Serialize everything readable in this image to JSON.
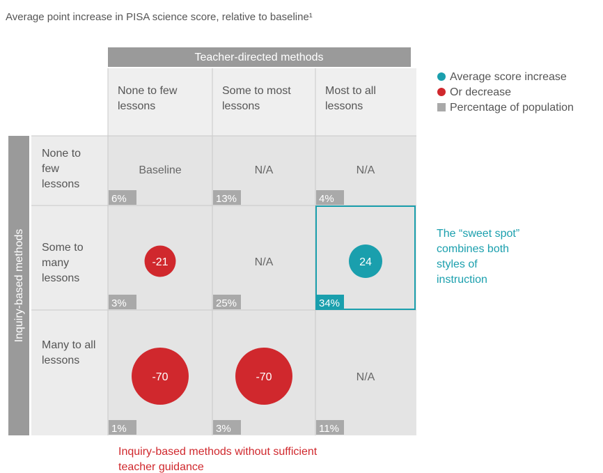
{
  "chart_data": {
    "type": "bubble_matrix",
    "title": "Average point increase in PISA science score, relative to baseline¹",
    "column_header": "Teacher-directed methods",
    "row_header": "Inquiry-based methods",
    "columns": [
      "None to few lessons",
      "Some to most lessons",
      "Most to all lessons"
    ],
    "rows": [
      "None to few lessons",
      "Some to many lessons",
      "Many to all lessons"
    ],
    "values": [
      [
        null,
        null,
        null
      ],
      [
        -21,
        null,
        24
      ],
      [
        -70,
        -70,
        null
      ]
    ],
    "value_labels": [
      [
        "Baseline",
        "N/A",
        "N/A"
      ],
      [
        "-21",
        "N/A",
        "24"
      ],
      [
        "-70",
        "-70",
        "N/A"
      ]
    ],
    "shares": [
      [
        6,
        13,
        4
      ],
      [
        3,
        25,
        34
      ],
      [
        1,
        3,
        11
      ]
    ],
    "share_labels": [
      [
        "6%",
        "13%",
        "4%"
      ],
      [
        "3%",
        "25%",
        "34%"
      ],
      [
        "1%",
        "3%",
        "11%"
      ]
    ],
    "increase_color": "#1a9fad",
    "decrease_color": "#d0282d",
    "share_color": "#a9a9a9",
    "legend": [
      {
        "name": "Average score increase",
        "color": "#1a9fad"
      },
      {
        "name": "Or decrease",
        "color": "#d0282d"
      },
      {
        "name": "Percentage of population",
        "color": "#a9a9a9"
      }
    ],
    "annotations": [
      {
        "text": "The “sweet spot” combines both styles of instruction",
        "color": "#1a9fad"
      },
      {
        "text": "Inquiry-based methods without sufficient teacher guidance",
        "color": "#d0282d"
      }
    ]
  }
}
